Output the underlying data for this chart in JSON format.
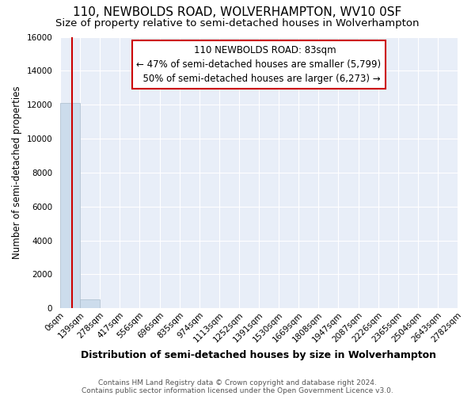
{
  "title": "110, NEWBOLDS ROAD, WOLVERHAMPTON, WV10 0SF",
  "subtitle": "Size of property relative to semi-detached houses in Wolverhampton",
  "xlabel": "Distribution of semi-detached houses by size in Wolverhampton",
  "ylabel": "Number of semi-detached properties",
  "footnote1": "Contains HM Land Registry data © Crown copyright and database right 2024.",
  "footnote2": "Contains public sector information licensed under the Open Government Licence v3.0.",
  "bin_edges": [
    0,
    139,
    278,
    417,
    556,
    696,
    835,
    974,
    1113,
    1252,
    1391,
    1530,
    1669,
    1808,
    1947,
    2087,
    2226,
    2365,
    2504,
    2643,
    2782
  ],
  "bin_labels": [
    "0sqm",
    "139sqm",
    "278sqm",
    "417sqm",
    "556sqm",
    "696sqm",
    "835sqm",
    "974sqm",
    "1113sqm",
    "1252sqm",
    "1391sqm",
    "1530sqm",
    "1669sqm",
    "1808sqm",
    "1947sqm",
    "2087sqm",
    "2226sqm",
    "2365sqm",
    "2504sqm",
    "2643sqm",
    "2782sqm"
  ],
  "bar_heights": [
    12100,
    540,
    30,
    12,
    6,
    4,
    3,
    2,
    2,
    1,
    1,
    1,
    0,
    0,
    0,
    0,
    0,
    0,
    0,
    0
  ],
  "bar_color": "#ccdcec",
  "bar_edgecolor": "#aabccc",
  "property_size": 83,
  "property_label": "110 NEWBOLDS ROAD: 83sqm",
  "pct_smaller": 47,
  "n_smaller": 5799,
  "pct_larger": 50,
  "n_larger": 6273,
  "vline_color": "#cc0000",
  "annotation_box_color": "#cc0000",
  "ylim": [
    0,
    16000
  ],
  "yticks": [
    0,
    2000,
    4000,
    6000,
    8000,
    10000,
    12000,
    14000,
    16000
  ],
  "background_color": "#ffffff",
  "axes_background": "#e8eef8",
  "grid_color": "#ffffff",
  "title_fontsize": 11,
  "subtitle_fontsize": 9.5,
  "xlabel_fontsize": 9,
  "ylabel_fontsize": 8.5,
  "tick_fontsize": 7.5,
  "annotation_fontsize": 8.5,
  "footnote_fontsize": 6.5
}
